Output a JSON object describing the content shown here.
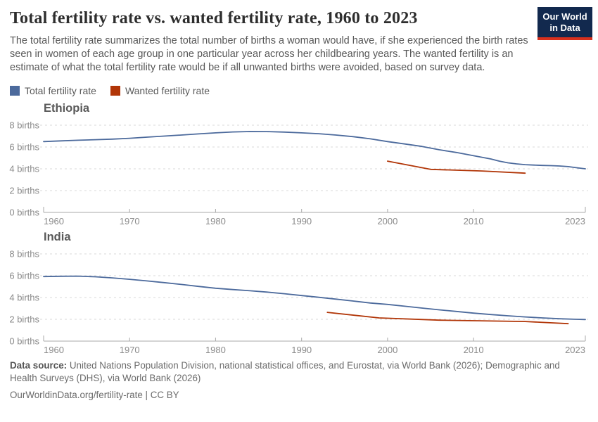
{
  "header": {
    "title": "Total fertility rate vs. wanted fertility rate, 1960 to 2023",
    "subtitle": "The total fertility rate summarizes the total number of births a woman would have, if she experienced the birth rates seen in women of each age group in one particular year across her childbearing years. The wanted fertility is an estimate of what the total fertility rate would be if all unwanted births were avoided, based on survey data.",
    "logo": {
      "line1": "Our World",
      "line2": "in Data",
      "bg_color": "#12294e",
      "stripe_color": "#d8301d"
    }
  },
  "legend": {
    "items": [
      {
        "label": "Total fertility rate",
        "color": "#4C6A9C"
      },
      {
        "label": "Wanted fertility rate",
        "color": "#B13507"
      }
    ]
  },
  "colors": {
    "series_blue": "#4C6A9C",
    "series_red": "#B13507",
    "gridline": "#dadada",
    "axis": "#a8a8a8",
    "tick_text": "#8a8a8a"
  },
  "footer": {
    "datasource_label": "Data source:",
    "datasource_text": " United Nations Population Division, national statistical offices, and Eurostat, via World Bank (2026); Demographic and Health Surveys (DHS), via World Bank (2026)",
    "url_line": "OurWorldinData.org/fertility-rate | CC BY"
  },
  "chart_data": [
    {
      "type": "line",
      "title": "Ethiopia",
      "xlabel": "",
      "ylabel": "births",
      "xlim": [
        1960,
        2023
      ],
      "ylim": [
        0,
        8
      ],
      "yticks": [
        0,
        2,
        4,
        6,
        8
      ],
      "ytick_suffix": " births",
      "xticks": [
        1960,
        1970,
        1980,
        1990,
        2000,
        2010,
        2023
      ],
      "grid": true,
      "series": [
        {
          "name": "Total fertility rate",
          "color": "#4C6A9C",
          "points": [
            [
              1960,
              6.5
            ],
            [
              1962,
              6.56
            ],
            [
              1964,
              6.62
            ],
            [
              1966,
              6.67
            ],
            [
              1968,
              6.72
            ],
            [
              1970,
              6.8
            ],
            [
              1972,
              6.9
            ],
            [
              1974,
              7.0
            ],
            [
              1976,
              7.1
            ],
            [
              1978,
              7.2
            ],
            [
              1980,
              7.3
            ],
            [
              1982,
              7.38
            ],
            [
              1984,
              7.42
            ],
            [
              1986,
              7.41
            ],
            [
              1988,
              7.37
            ],
            [
              1990,
              7.3
            ],
            [
              1992,
              7.22
            ],
            [
              1994,
              7.1
            ],
            [
              1996,
              6.95
            ],
            [
              1998,
              6.75
            ],
            [
              2000,
              6.5
            ],
            [
              2002,
              6.28
            ],
            [
              2004,
              6.05
            ],
            [
              2006,
              5.75
            ],
            [
              2008,
              5.5
            ],
            [
              2010,
              5.2
            ],
            [
              2012,
              4.9
            ],
            [
              2013,
              4.7
            ],
            [
              2014,
              4.55
            ],
            [
              2015,
              4.45
            ],
            [
              2016,
              4.38
            ],
            [
              2017,
              4.34
            ],
            [
              2018,
              4.31
            ],
            [
              2019,
              4.29
            ],
            [
              2020,
              4.26
            ],
            [
              2021,
              4.2
            ],
            [
              2022,
              4.1
            ],
            [
              2023,
              4.0
            ]
          ]
        },
        {
          "name": "Wanted fertility rate",
          "color": "#B13507",
          "points": [
            [
              2000,
              4.7
            ],
            [
              2005,
              3.95
            ],
            [
              2011,
              3.8
            ],
            [
              2016,
              3.6
            ]
          ]
        }
      ]
    },
    {
      "type": "line",
      "title": "India",
      "xlabel": "",
      "ylabel": "births",
      "xlim": [
        1960,
        2023
      ],
      "ylim": [
        0,
        8
      ],
      "yticks": [
        0,
        2,
        4,
        6,
        8
      ],
      "ytick_suffix": " births",
      "xticks": [
        1960,
        1970,
        1980,
        1990,
        2000,
        2010,
        2023
      ],
      "grid": true,
      "series": [
        {
          "name": "Total fertility rate",
          "color": "#4C6A9C",
          "points": [
            [
              1960,
              5.92
            ],
            [
              1962,
              5.95
            ],
            [
              1964,
              5.96
            ],
            [
              1966,
              5.9
            ],
            [
              1968,
              5.8
            ],
            [
              1970,
              5.67
            ],
            [
              1972,
              5.52
            ],
            [
              1974,
              5.37
            ],
            [
              1976,
              5.2
            ],
            [
              1978,
              5.02
            ],
            [
              1980,
              4.85
            ],
            [
              1982,
              4.73
            ],
            [
              1984,
              4.62
            ],
            [
              1986,
              4.5
            ],
            [
              1988,
              4.35
            ],
            [
              1990,
              4.18
            ],
            [
              1992,
              4.02
            ],
            [
              1994,
              3.85
            ],
            [
              1996,
              3.68
            ],
            [
              1998,
              3.5
            ],
            [
              2000,
              3.37
            ],
            [
              2002,
              3.2
            ],
            [
              2004,
              3.03
            ],
            [
              2006,
              2.87
            ],
            [
              2008,
              2.72
            ],
            [
              2010,
              2.57
            ],
            [
              2012,
              2.44
            ],
            [
              2014,
              2.32
            ],
            [
              2016,
              2.22
            ],
            [
              2018,
              2.13
            ],
            [
              2020,
              2.05
            ],
            [
              2022,
              2.0
            ],
            [
              2023,
              1.98
            ]
          ]
        },
        {
          "name": "Wanted fertility rate",
          "color": "#B13507",
          "points": [
            [
              1993,
              2.64
            ],
            [
              1999,
              2.13
            ],
            [
              2006,
              1.92
            ],
            [
              2016,
              1.8
            ],
            [
              2021,
              1.6
            ]
          ]
        }
      ]
    }
  ]
}
